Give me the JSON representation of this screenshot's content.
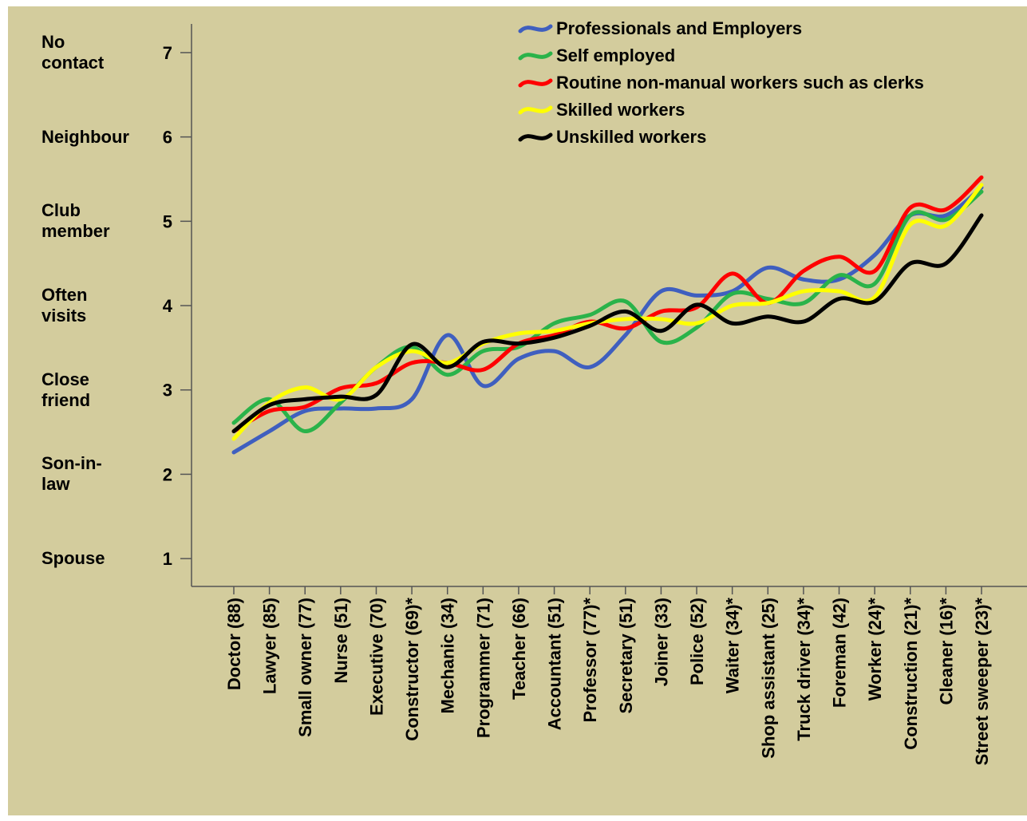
{
  "chart_data": {
    "type": "line",
    "categories": [
      "Doctor (88)",
      "Lawyer (85)",
      "Small owner (77)",
      "Nurse (51)",
      "Executive (70)",
      "Constructor (69)*",
      "Mechanic (34)",
      "Programmer (71)",
      "Teacher (66)",
      "Accountant (51)",
      "Professor (77)*",
      "Secretary (51)",
      "Joiner (33)",
      "Police (52)",
      "Waiter (34)*",
      "Shop assistant (25)",
      "Truck driver (34)*",
      "Foreman (42)",
      "Worker (24)*",
      "Construction (21)*",
      "Cleaner (16)*",
      "Street sweeper (23)*"
    ],
    "series": [
      {
        "name": "Professionals and Employers",
        "color": "#3f5fbf",
        "values": [
          2.26,
          2.51,
          2.75,
          2.78,
          2.78,
          2.89,
          3.65,
          3.05,
          3.37,
          3.46,
          3.27,
          3.65,
          4.17,
          4.12,
          4.17,
          4.45,
          4.31,
          4.31,
          4.6,
          5.07,
          5.07,
          5.4
        ]
      },
      {
        "name": "Self employed",
        "color": "#2ab34a",
        "values": [
          2.61,
          2.89,
          2.51,
          2.85,
          3.27,
          3.51,
          3.18,
          3.46,
          3.51,
          3.79,
          3.89,
          4.05,
          3.57,
          3.74,
          4.14,
          4.08,
          4.03,
          4.36,
          4.26,
          5.07,
          5.02,
          5.35
        ]
      },
      {
        "name": "Routine non-manual workers such as clerks",
        "color": "#ff0000",
        "values": [
          2.51,
          2.75,
          2.8,
          3.02,
          3.08,
          3.32,
          3.32,
          3.24,
          3.55,
          3.65,
          3.81,
          3.73,
          3.93,
          3.98,
          4.38,
          4.03,
          4.41,
          4.58,
          4.41,
          5.16,
          5.14,
          5.52
        ]
      },
      {
        "name": "Skilled workers",
        "color": "#ffff00",
        "values": [
          2.42,
          2.85,
          3.03,
          2.89,
          3.27,
          3.46,
          3.32,
          3.55,
          3.67,
          3.7,
          3.79,
          3.84,
          3.84,
          3.79,
          4.0,
          4.03,
          4.17,
          4.17,
          4.1,
          4.96,
          4.95,
          5.43
        ]
      },
      {
        "name": "Unskilled workers",
        "color": "#000000",
        "values": [
          2.51,
          2.82,
          2.89,
          2.92,
          2.94,
          3.54,
          3.27,
          3.57,
          3.55,
          3.62,
          3.76,
          3.93,
          3.7,
          4.01,
          3.79,
          3.87,
          3.81,
          4.08,
          4.05,
          4.5,
          4.5,
          5.07
        ]
      }
    ],
    "ylim": [
      0.67,
      7.34
    ],
    "yticks": [
      1,
      2,
      3,
      4,
      5,
      6,
      7
    ],
    "ylevel_labels": [
      "Spouse",
      "Son-in-law",
      "Close friend",
      "Often visits",
      "Club member",
      "Neighbour",
      "No contact"
    ],
    "background": "#d3cc9d",
    "legend": "top-right"
  }
}
